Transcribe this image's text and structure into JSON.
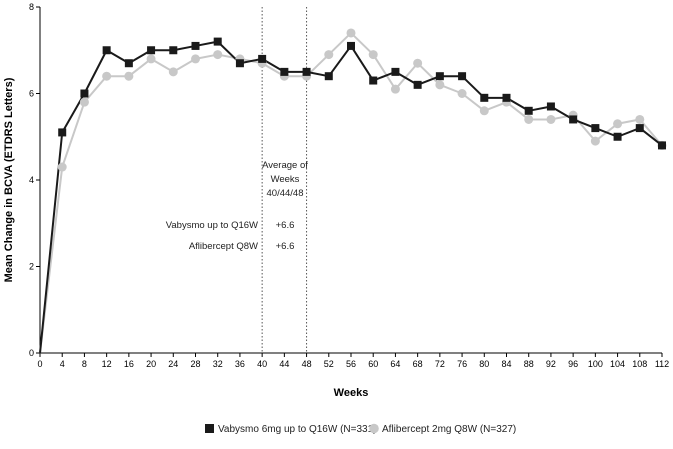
{
  "chart_data": {
    "type": "line",
    "xlabel": "Weeks",
    "ylabel": "Mean Change in BCVA (ETDRS Letters)",
    "xlim": [
      0,
      112
    ],
    "ylim": [
      0,
      8
    ],
    "x_ticks": [
      0,
      4,
      8,
      12,
      16,
      20,
      24,
      28,
      32,
      36,
      40,
      44,
      48,
      52,
      56,
      60,
      64,
      68,
      72,
      76,
      80,
      84,
      88,
      92,
      96,
      100,
      104,
      108,
      112
    ],
    "y_ticks": [
      0,
      2,
      4,
      6,
      8
    ],
    "x": [
      0,
      4,
      8,
      12,
      16,
      20,
      24,
      28,
      32,
      36,
      40,
      44,
      48,
      52,
      56,
      60,
      64,
      68,
      72,
      76,
      80,
      84,
      88,
      92,
      96,
      100,
      104,
      108,
      112
    ],
    "series": [
      {
        "name": "Vabysmo 6mg up to Q16W (N=331)",
        "color": "#1a1a1a",
        "marker": "square",
        "values": [
          0,
          5.1,
          6.0,
          7.0,
          6.7,
          7.0,
          7.0,
          7.1,
          7.2,
          6.7,
          6.8,
          6.5,
          6.5,
          6.4,
          7.1,
          6.3,
          6.5,
          6.2,
          6.4,
          6.4,
          5.9,
          5.9,
          5.6,
          5.7,
          5.4,
          5.2,
          5.0,
          5.2,
          4.8
        ]
      },
      {
        "name": "Aflibercept 2mg Q8W (N=327)",
        "color": "#c8c8c8",
        "marker": "circle",
        "values": [
          0,
          4.3,
          5.8,
          6.4,
          6.4,
          6.8,
          6.5,
          6.8,
          6.9,
          6.8,
          6.7,
          6.4,
          6.4,
          6.9,
          7.4,
          6.9,
          6.1,
          6.7,
          6.2,
          6.0,
          5.6,
          5.8,
          5.4,
          5.4,
          5.5,
          4.9,
          5.3,
          5.4,
          4.8
        ]
      }
    ],
    "reference_lines": [
      40,
      48
    ],
    "annotation": {
      "header": [
        "Average of",
        "Weeks",
        "40/44/48"
      ],
      "rows": [
        {
          "label": "Vabysmo up to Q16W",
          "value": "+6.6"
        },
        {
          "label": "Aflibercept Q8W",
          "value": "+6.6"
        }
      ]
    },
    "legend_position": "bottom",
    "grid": false
  }
}
